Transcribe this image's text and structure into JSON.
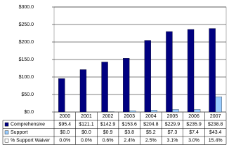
{
  "chart_data": {
    "type": "bar",
    "categories": [
      "2000",
      "2001",
      "2002",
      "2003",
      "2004",
      "2005",
      "2006",
      "2007"
    ],
    "series": [
      {
        "name": "Comprehensive",
        "color": "#000080",
        "values": [
          95.4,
          121.1,
          142.9,
          153.6,
          204.8,
          229.9,
          235.9,
          238.8
        ],
        "value_labels": [
          "$95.4",
          "$121.1",
          "$142.9",
          "$153.6",
          "$204.8",
          "$229.9",
          "$235.9",
          "$238.8"
        ]
      },
      {
        "name": "Support",
        "color": "#99ccff",
        "values": [
          0.0,
          0.0,
          0.9,
          3.8,
          5.2,
          7.3,
          7.4,
          43.4
        ],
        "value_labels": [
          "$0.0",
          "$0.0",
          "$0.9",
          "$3.8",
          "$5.2",
          "$7.3",
          "$7.4",
          "$43.4"
        ]
      },
      {
        "name": "% Support Waiver",
        "color": "#ffffff",
        "plotted": false,
        "values": [
          0.0,
          0.0,
          0.6,
          2.4,
          2.5,
          3.1,
          3.0,
          15.4
        ],
        "value_labels": [
          "0.0%",
          "0.0%",
          "0.6%",
          "2.4%",
          "2.5%",
          "3.1%",
          "3.0%",
          "15.4%"
        ]
      }
    ],
    "ylim": [
      0,
      300
    ],
    "yticks": [
      {
        "value": 0,
        "label": "$0.0"
      },
      {
        "value": 50,
        "label": "$50.0"
      },
      {
        "value": 100,
        "label": "$100.0"
      },
      {
        "value": 150,
        "label": "$150.0"
      },
      {
        "value": 200,
        "label": "$200.0"
      },
      {
        "value": 250,
        "label": "$250.0"
      },
      {
        "value": 300,
        "label": "$300.0"
      }
    ],
    "grid": true,
    "legend": "data-table"
  }
}
